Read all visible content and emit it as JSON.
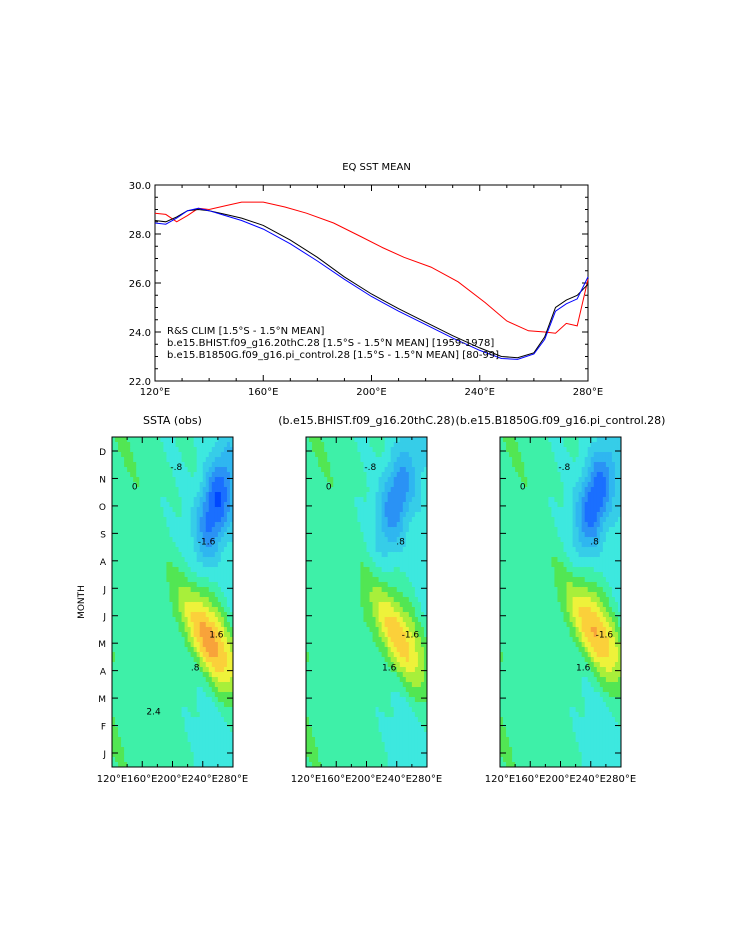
{
  "chart_data": [
    {
      "type": "line",
      "title": "EQ SST MEAN",
      "xlabel": "",
      "ylabel": "",
      "xlim": [
        120,
        280
      ],
      "ylim": [
        22,
        30
      ],
      "x_ticks": [
        120,
        160,
        200,
        240,
        280
      ],
      "x_tick_labels": [
        "120°E",
        "160°E",
        "200°E",
        "240°E",
        "280°E"
      ],
      "y_ticks": [
        22,
        24,
        26,
        28,
        30
      ],
      "y_tick_labels": [
        "22.0",
        "24.0",
        "26.0",
        "28.0",
        "30.0"
      ],
      "series": [
        {
          "name": "R&S CLIM [1.5°S - 1.5°N MEAN]",
          "color": "#ff0000",
          "x": [
            120,
            124,
            128,
            132,
            136,
            140,
            146,
            152,
            160,
            168,
            176,
            186,
            196,
            204,
            212,
            222,
            232,
            242,
            250,
            258,
            264,
            268,
            272,
            276,
            280
          ],
          "y": [
            28.85,
            28.8,
            28.5,
            28.75,
            29.05,
            29.0,
            29.15,
            29.3,
            29.3,
            29.1,
            28.85,
            28.45,
            27.9,
            27.45,
            27.05,
            26.65,
            26.05,
            25.2,
            24.45,
            24.05,
            24.0,
            23.95,
            24.35,
            24.25,
            26.15
          ]
        },
        {
          "name": "b.e15.BHIST.f09_g16.20thC.28 [1.5°S - 1.5°N MEAN] [1959-1978]",
          "color": "#000000",
          "x": [
            120,
            124,
            128,
            132,
            136,
            140,
            146,
            152,
            160,
            170,
            180,
            190,
            200,
            210,
            220,
            230,
            240,
            248,
            254,
            260,
            264,
            268,
            272,
            276,
            280
          ],
          "y": [
            28.55,
            28.5,
            28.7,
            28.95,
            29.0,
            28.95,
            28.8,
            28.65,
            28.35,
            27.75,
            27.05,
            26.25,
            25.55,
            24.95,
            24.4,
            23.85,
            23.35,
            23.0,
            22.95,
            23.15,
            23.8,
            25.0,
            25.3,
            25.5,
            25.95
          ]
        },
        {
          "name": "b.e15.B1850G.f09_g16.pi_control.28 [1.5°S - 1.5°N MEAN] [80-99]",
          "color": "#0000ff",
          "x": [
            120,
            124,
            128,
            132,
            136,
            140,
            146,
            152,
            160,
            170,
            180,
            190,
            200,
            210,
            220,
            230,
            240,
            248,
            254,
            260,
            264,
            268,
            272,
            276,
            280
          ],
          "y": [
            28.45,
            28.4,
            28.65,
            28.95,
            29.05,
            28.95,
            28.75,
            28.55,
            28.2,
            27.6,
            26.9,
            26.15,
            25.45,
            24.85,
            24.3,
            23.75,
            23.25,
            22.92,
            22.88,
            23.1,
            23.7,
            24.85,
            25.15,
            25.35,
            26.25
          ]
        }
      ]
    },
    {
      "type": "heatmap",
      "title": "SSTA (obs)",
      "ylabel": "MONTH",
      "xlim": [
        120,
        280
      ],
      "x_tick_labels": [
        "120°E",
        "160°E",
        "200°E",
        "240°E",
        "280°E"
      ],
      "y_tick_labels": [
        "J",
        "F",
        "M",
        "A",
        "M",
        "J",
        "J",
        "A",
        "S",
        "O",
        "N",
        "D"
      ],
      "contour_labels": [
        "0",
        "-.8",
        "-1.6",
        ".8",
        "1.6",
        "2.4"
      ],
      "warm_center": {
        "lon": 258,
        "month": 3.5,
        "value": 2.4
      },
      "cold_center": {
        "lon": 256,
        "month": 9.0,
        "value": -2.0
      }
    },
    {
      "type": "heatmap",
      "title": "(b.e15.BHIST.f09_g16.20thC.28)",
      "xlim": [
        120,
        280
      ],
      "x_tick_labels": [
        "120°E",
        "160°E",
        "200°E",
        "240°E",
        "280°E"
      ],
      "contour_labels": [
        "0",
        "-.8",
        ".8",
        "1.6",
        "-1.6"
      ],
      "warm_center": {
        "lon": 252,
        "month": 3.6,
        "value": 2.0
      },
      "cold_center": {
        "lon": 240,
        "month": 9.3,
        "value": -1.6
      }
    },
    {
      "type": "heatmap",
      "title": "(b.e15.B1850G.f09_g16.pi_control.28)",
      "xlim": [
        120,
        280
      ],
      "x_tick_labels": [
        "120°E",
        "160°E",
        "200°E",
        "240°E",
        "280°E"
      ],
      "contour_labels": [
        "0",
        "-.8",
        ".8",
        "1.6",
        "-1.6"
      ],
      "warm_center": {
        "lon": 255,
        "month": 3.8,
        "value": 2.2
      },
      "cold_center": {
        "lon": 245,
        "month": 9.2,
        "value": -2.0
      }
    }
  ]
}
